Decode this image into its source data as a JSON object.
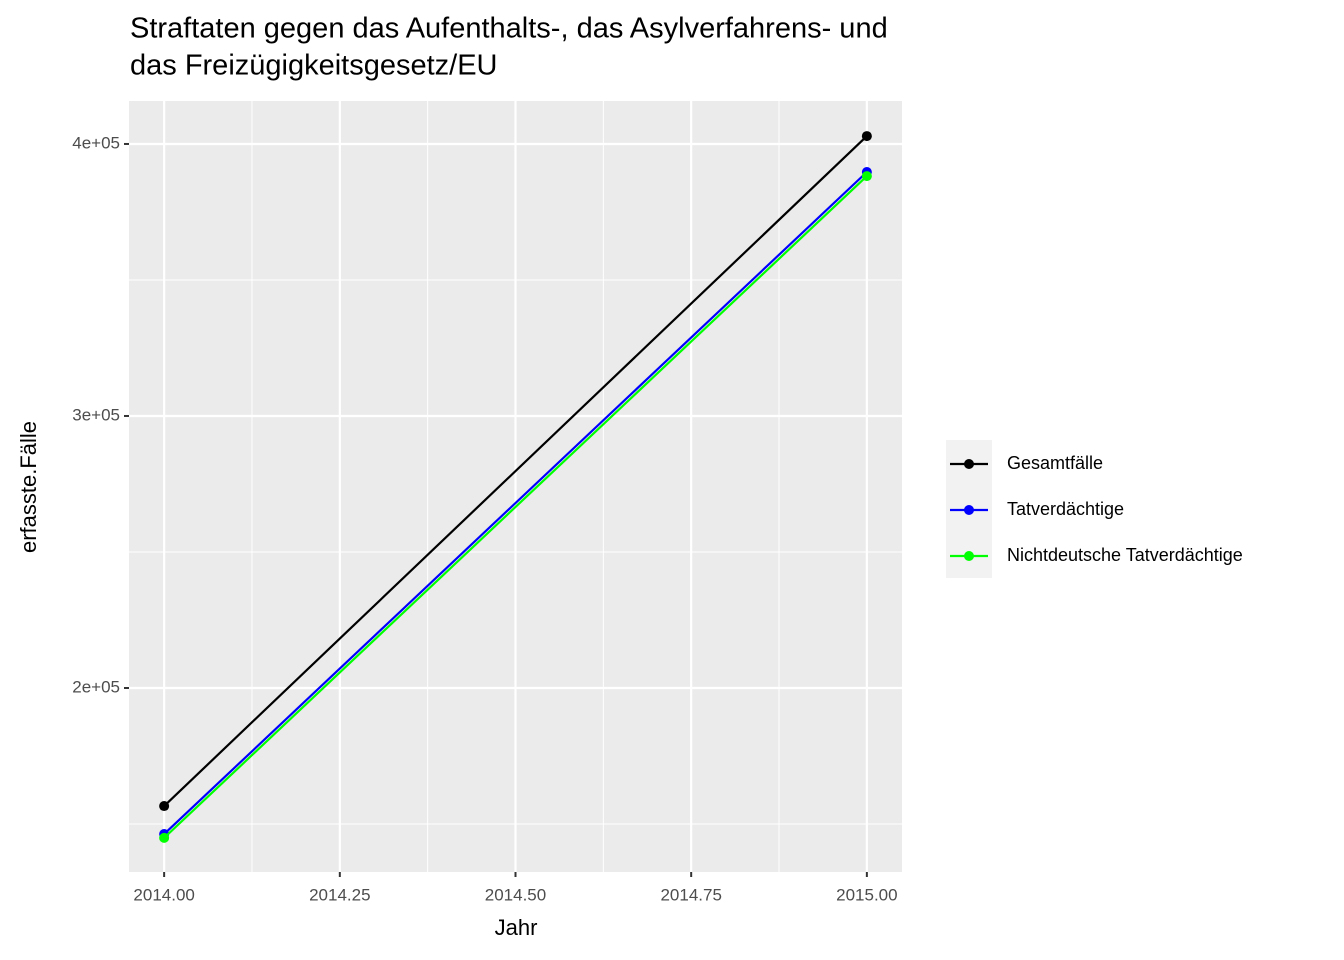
{
  "chart_data": {
    "type": "line",
    "title": [
      "Straftaten gegen das Aufenthalts-, das Asylverfahrens- und",
      "das Freizügigkeitsgesetz/EU"
    ],
    "x_label": "Jahr",
    "y_label": "erfasste.Fälle",
    "x": [
      2014,
      2015
    ],
    "series": [
      {
        "name": "Gesamtfälle",
        "color": "#000000",
        "values": [
          156600,
          402900
        ]
      },
      {
        "name": "Tatverdächtige",
        "color": "#0000ff",
        "values": [
          146300,
          389700
        ]
      },
      {
        "name": "Nichtdeutsche Tatverdächtige",
        "color": "#00ff00",
        "values": [
          144900,
          388200
        ]
      }
    ],
    "xlim": [
      2013.95,
      2015.05
    ],
    "ylim": [
      132350,
      415800
    ],
    "xticks": [
      {
        "value": 2014,
        "label": "2014.00"
      },
      {
        "value": 2014.25,
        "label": "2014.25"
      },
      {
        "value": 2014.5,
        "label": "2014.50"
      },
      {
        "value": 2014.75,
        "label": "2014.75"
      },
      {
        "value": 2015,
        "label": "2015.00"
      }
    ],
    "yticks": [
      {
        "value": 200000,
        "label": "2e+05"
      },
      {
        "value": 300000,
        "label": "3e+05"
      },
      {
        "value": 400000,
        "label": "4e+05"
      }
    ],
    "x_minor_ticks": [
      2014.125,
      2014.375,
      2014.625,
      2014.875
    ],
    "y_minor_ticks": [
      150000,
      250000,
      350000
    ],
    "grid": true,
    "legend": "right"
  }
}
